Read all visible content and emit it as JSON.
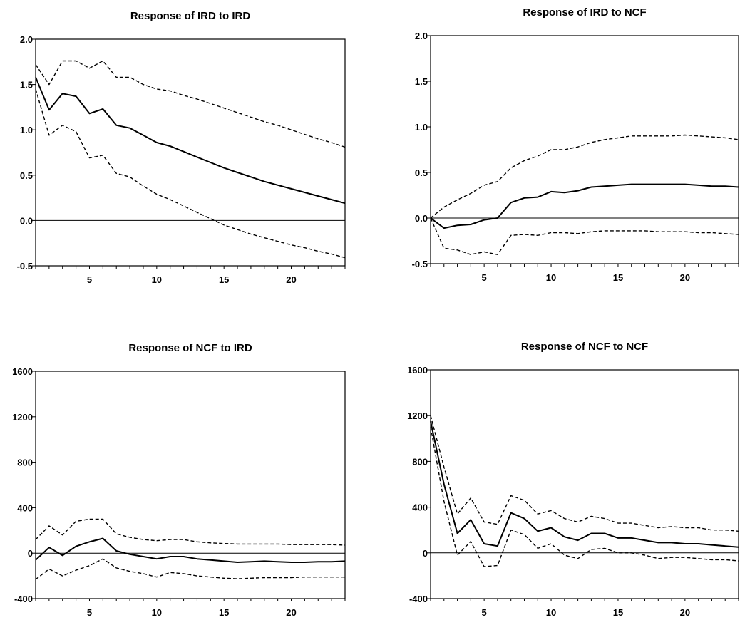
{
  "chart_data": [
    {
      "type": "line",
      "title": "Response of IRD to IRD",
      "xlabel": "",
      "ylabel": "",
      "xlim": [
        1,
        24
      ],
      "ylim": [
        -0.5,
        2.0
      ],
      "x_ticks": [
        5,
        10,
        15,
        20
      ],
      "y_ticks": [
        "2.0",
        "1.5",
        "1.0",
        "0.5",
        "0.0",
        "-0.5"
      ],
      "zero_line": true,
      "grid": false,
      "legend": "none",
      "x": [
        1,
        2,
        3,
        4,
        5,
        6,
        7,
        8,
        9,
        10,
        11,
        12,
        13,
        14,
        15,
        16,
        17,
        18,
        19,
        20,
        21,
        22,
        23,
        24
      ],
      "series": [
        {
          "style": "solid",
          "values": [
            1.58,
            1.22,
            1.4,
            1.37,
            1.18,
            1.23,
            1.05,
            1.02,
            0.94,
            0.86,
            0.82,
            0.76,
            0.7,
            0.64,
            0.58,
            0.53,
            0.48,
            0.43,
            0.39,
            0.35,
            0.31,
            0.27,
            0.23,
            0.19
          ]
        },
        {
          "style": "dashed",
          "values": [
            1.72,
            1.5,
            1.76,
            1.76,
            1.68,
            1.76,
            1.58,
            1.58,
            1.5,
            1.45,
            1.43,
            1.38,
            1.34,
            1.29,
            1.24,
            1.19,
            1.14,
            1.09,
            1.05,
            1.0,
            0.95,
            0.9,
            0.86,
            0.81
          ]
        },
        {
          "style": "dashed",
          "values": [
            1.45,
            0.94,
            1.05,
            0.98,
            0.69,
            0.72,
            0.52,
            0.48,
            0.38,
            0.29,
            0.23,
            0.16,
            0.09,
            0.02,
            -0.05,
            -0.1,
            -0.15,
            -0.19,
            -0.23,
            -0.27,
            -0.3,
            -0.34,
            -0.37,
            -0.41
          ]
        }
      ]
    },
    {
      "type": "line",
      "title": "Response of IRD to NCF",
      "xlabel": "",
      "ylabel": "",
      "xlim": [
        1,
        24
      ],
      "ylim": [
        -0.5,
        2.0
      ],
      "x_ticks": [
        5,
        10,
        15,
        20
      ],
      "y_ticks": [
        "2.0",
        "1.5",
        "1.0",
        "0.5",
        "0.0",
        "-0.5"
      ],
      "zero_line": true,
      "grid": false,
      "legend": "none",
      "x": [
        1,
        2,
        3,
        4,
        5,
        6,
        7,
        8,
        9,
        10,
        11,
        12,
        13,
        14,
        15,
        16,
        17,
        18,
        19,
        20,
        21,
        22,
        23,
        24
      ],
      "series": [
        {
          "style": "solid",
          "values": [
            0.0,
            -0.11,
            -0.08,
            -0.07,
            -0.02,
            0.0,
            0.17,
            0.22,
            0.23,
            0.29,
            0.28,
            0.3,
            0.34,
            0.35,
            0.36,
            0.37,
            0.37,
            0.37,
            0.37,
            0.37,
            0.36,
            0.35,
            0.35,
            0.34
          ]
        },
        {
          "style": "dashed",
          "values": [
            0.0,
            0.12,
            0.2,
            0.27,
            0.36,
            0.4,
            0.55,
            0.63,
            0.68,
            0.75,
            0.75,
            0.78,
            0.83,
            0.86,
            0.88,
            0.9,
            0.9,
            0.9,
            0.9,
            0.91,
            0.9,
            0.89,
            0.88,
            0.86
          ]
        },
        {
          "style": "dashed",
          "values": [
            0.0,
            -0.33,
            -0.35,
            -0.4,
            -0.37,
            -0.4,
            -0.19,
            -0.18,
            -0.19,
            -0.16,
            -0.16,
            -0.17,
            -0.15,
            -0.14,
            -0.14,
            -0.14,
            -0.14,
            -0.15,
            -0.15,
            -0.15,
            -0.16,
            -0.16,
            -0.17,
            -0.18
          ]
        }
      ]
    },
    {
      "type": "line",
      "title": "Response of NCF to IRD",
      "xlabel": "",
      "ylabel": "",
      "xlim": [
        1,
        24
      ],
      "ylim": [
        -400,
        1600
      ],
      "x_ticks": [
        5,
        10,
        15,
        20
      ],
      "y_ticks": [
        "1600",
        "1200",
        "800",
        "400",
        "0",
        "-400"
      ],
      "zero_line": true,
      "grid": false,
      "legend": "none",
      "x": [
        1,
        2,
        3,
        4,
        5,
        6,
        7,
        8,
        9,
        10,
        11,
        12,
        13,
        14,
        15,
        16,
        17,
        18,
        19,
        20,
        21,
        22,
        23,
        24
      ],
      "series": [
        {
          "style": "solid",
          "values": [
            -60,
            50,
            -20,
            60,
            100,
            130,
            20,
            -10,
            -30,
            -50,
            -30,
            -30,
            -50,
            -60,
            -70,
            -80,
            -75,
            -70,
            -75,
            -80,
            -80,
            -75,
            -75,
            -70
          ]
        },
        {
          "style": "dashed",
          "values": [
            120,
            240,
            160,
            280,
            300,
            300,
            170,
            140,
            120,
            110,
            120,
            120,
            100,
            90,
            85,
            80,
            80,
            80,
            80,
            75,
            75,
            75,
            75,
            70
          ]
        },
        {
          "style": "dashed",
          "values": [
            -230,
            -140,
            -200,
            -150,
            -110,
            -50,
            -130,
            -160,
            -180,
            -210,
            -170,
            -180,
            -200,
            -210,
            -220,
            -225,
            -220,
            -215,
            -215,
            -215,
            -210,
            -210,
            -210,
            -210
          ]
        }
      ]
    },
    {
      "type": "line",
      "title": "Response of NCF to NCF",
      "xlabel": "",
      "ylabel": "",
      "xlim": [
        1,
        24
      ],
      "ylim": [
        -400,
        1600
      ],
      "x_ticks": [
        5,
        10,
        15,
        20
      ],
      "y_ticks": [
        "1600",
        "1200",
        "800",
        "400",
        "0",
        "-400"
      ],
      "zero_line": true,
      "grid": false,
      "legend": "none",
      "x": [
        1,
        2,
        3,
        4,
        5,
        6,
        7,
        8,
        9,
        10,
        11,
        12,
        13,
        14,
        15,
        16,
        17,
        18,
        19,
        20,
        21,
        22,
        23,
        24
      ],
      "series": [
        {
          "style": "solid",
          "values": [
            1150,
            600,
            170,
            290,
            80,
            60,
            350,
            300,
            190,
            220,
            140,
            110,
            170,
            170,
            130,
            130,
            110,
            90,
            90,
            80,
            80,
            70,
            60,
            50
          ]
        },
        {
          "style": "dashed",
          "values": [
            1200,
            750,
            340,
            480,
            270,
            250,
            500,
            460,
            340,
            370,
            300,
            270,
            320,
            300,
            260,
            260,
            240,
            220,
            230,
            220,
            220,
            200,
            200,
            190
          ]
        },
        {
          "style": "dashed",
          "values": [
            1100,
            450,
            -20,
            100,
            -120,
            -110,
            200,
            160,
            40,
            80,
            -20,
            -50,
            30,
            40,
            0,
            0,
            -20,
            -50,
            -40,
            -40,
            -50,
            -60,
            -60,
            -70
          ]
        }
      ]
    }
  ]
}
